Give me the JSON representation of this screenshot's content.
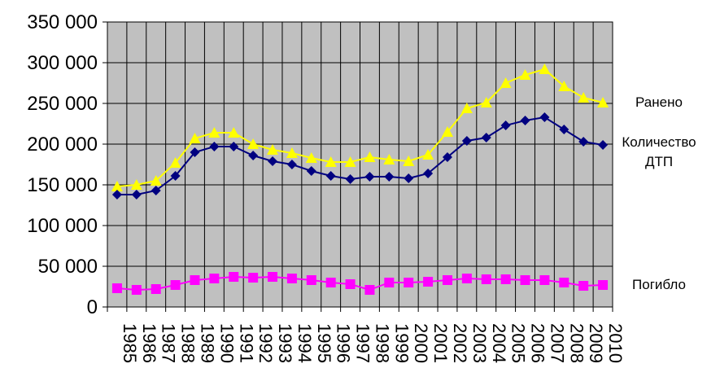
{
  "chart_data": {
    "type": "line",
    "ylim": [
      0,
      350000
    ],
    "grid": true,
    "y_ticks": [
      "0",
      "50 000",
      "100 000",
      "150 000",
      "200 000",
      "250 000",
      "300 000",
      "350 000"
    ],
    "categories": [
      "1985",
      "1986",
      "1987",
      "1988",
      "1989",
      "1990",
      "1991",
      "1992",
      "1993",
      "1994",
      "1995",
      "1996",
      "1997",
      "1998",
      "1999",
      "2000",
      "2001",
      "2002",
      "2003",
      "2004",
      "2005",
      "2006",
      "2007",
      "2008",
      "2009",
      "2010"
    ],
    "series": [
      {
        "name": "Ранено",
        "label_lines": [
          "Ранено"
        ],
        "color": "#ffff00",
        "marker": "triangle",
        "values": [
          148000,
          150000,
          155000,
          177000,
          207000,
          214000,
          214000,
          200000,
          193000,
          189000,
          183000,
          178000,
          178000,
          184000,
          181000,
          179000,
          187000,
          215000,
          244000,
          251000,
          275000,
          285000,
          292000,
          271000,
          257000,
          251000
        ]
      },
      {
        "name": "Количество ДТП",
        "label_lines": [
          "Количество",
          "ДТП"
        ],
        "color": "#000080",
        "marker": "diamond",
        "values": [
          138000,
          138000,
          143000,
          161000,
          190000,
          197000,
          197000,
          186000,
          179000,
          175000,
          167000,
          161000,
          157000,
          160000,
          160000,
          158000,
          164000,
          184000,
          204000,
          208000,
          223000,
          229000,
          233000,
          218000,
          203000,
          199000
        ]
      },
      {
        "name": "Погибло",
        "label_lines": [
          "Погибло"
        ],
        "color": "#ff00ff",
        "marker": "square",
        "values": [
          23000,
          21000,
          22000,
          27000,
          33000,
          35000,
          37000,
          36000,
          37000,
          35000,
          33000,
          30000,
          28000,
          21000,
          30000,
          30000,
          31000,
          33000,
          35000,
          34000,
          34000,
          33000,
          33000,
          30000,
          26000,
          27000
        ]
      }
    ]
  }
}
